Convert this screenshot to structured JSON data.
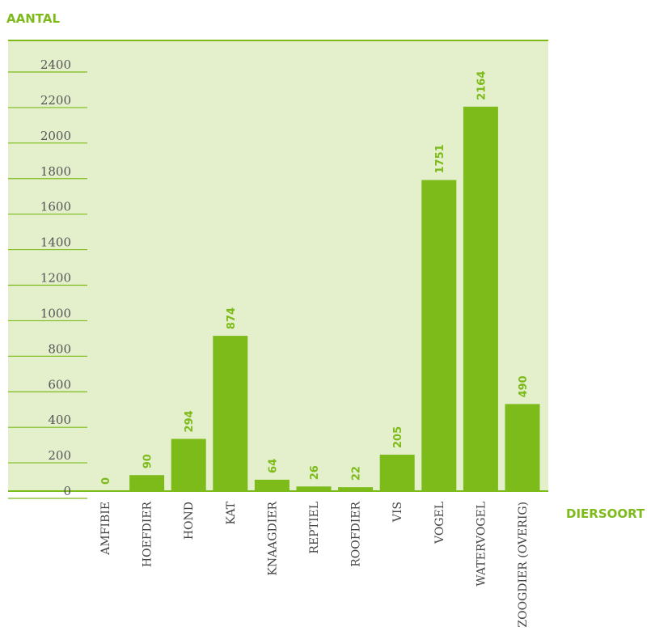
{
  "chart_data": {
    "type": "bar",
    "ylabel": "AANTAL",
    "xlabel": "DIERSOORT",
    "categories": [
      "AMFIBIE",
      "HOEFDIER",
      "HOND",
      "KAT",
      "KNAAGDIER",
      "REPTIEL",
      "ROOFDIER",
      "VIS",
      "VOGEL",
      "WATERVOGEL",
      "ZOOGDIER (OVERIG)"
    ],
    "values": [
      0,
      90,
      294,
      874,
      64,
      26,
      22,
      205,
      1751,
      2164,
      490
    ],
    "ylim": [
      0,
      2400
    ],
    "yticks": [
      0,
      200,
      400,
      600,
      800,
      1000,
      1200,
      1400,
      1600,
      1800,
      2000,
      2200,
      2400
    ],
    "colors": {
      "bar": "#7dbb1b",
      "plot_background": "#e4efcc",
      "accent": "#7dbb1b",
      "gridline": "#7dbb1b"
    }
  }
}
